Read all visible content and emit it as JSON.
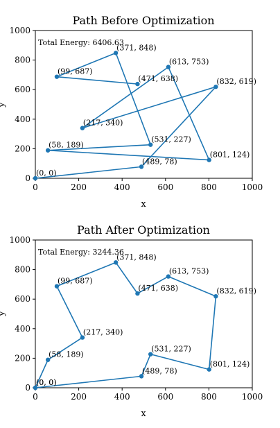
{
  "colors": {
    "line": "#1f77b4",
    "marker": "#1f77b4"
  },
  "chart_data": [
    {
      "type": "line",
      "title": "Path Before Optimization",
      "xlabel": "x",
      "ylabel": "y",
      "xlim": [
        0,
        1000
      ],
      "ylim": [
        0,
        1000
      ],
      "xticks": [
        "0",
        "200",
        "400",
        "600",
        "800",
        "1000"
      ],
      "yticks": [
        "0",
        "200",
        "400",
        "600",
        "800",
        "1000"
      ],
      "energy_label": "Total Energy: 6406.63",
      "path": [
        {
          "x": 0,
          "y": 0,
          "label": "(0, 0)"
        },
        {
          "x": 489,
          "y": 78,
          "label": "(489, 78)"
        },
        {
          "x": 832,
          "y": 619,
          "label": "(832, 619)"
        },
        {
          "x": 217,
          "y": 340,
          "label": "(217, 340)"
        },
        {
          "x": 613,
          "y": 753,
          "label": "(613, 753)"
        },
        {
          "x": 801,
          "y": 124,
          "label": "(801, 124)"
        },
        {
          "x": 58,
          "y": 189,
          "label": "(58, 189)"
        },
        {
          "x": 531,
          "y": 227,
          "label": "(531, 227)"
        },
        {
          "x": 371,
          "y": 848,
          "label": "(371, 848)"
        },
        {
          "x": 99,
          "y": 687,
          "label": "(99, 687)"
        },
        {
          "x": 471,
          "y": 638,
          "label": "(471, 638)"
        }
      ]
    },
    {
      "type": "line",
      "title": "Path After Optimization",
      "xlabel": "x",
      "ylabel": "y",
      "xlim": [
        0,
        1000
      ],
      "ylim": [
        0,
        1000
      ],
      "xticks": [
        "0",
        "200",
        "400",
        "600",
        "800",
        "1000"
      ],
      "yticks": [
        "0",
        "200",
        "400",
        "600",
        "800",
        "1000"
      ],
      "energy_label": "Total Energy: 3244.36",
      "path": [
        {
          "x": 0,
          "y": 0,
          "label": "(0, 0)"
        },
        {
          "x": 58,
          "y": 189,
          "label": "(58, 189)"
        },
        {
          "x": 217,
          "y": 340,
          "label": "(217, 340)"
        },
        {
          "x": 99,
          "y": 687,
          "label": "(99, 687)"
        },
        {
          "x": 371,
          "y": 848,
          "label": "(371, 848)"
        },
        {
          "x": 471,
          "y": 638,
          "label": "(471, 638)"
        },
        {
          "x": 613,
          "y": 753,
          "label": "(613, 753)"
        },
        {
          "x": 832,
          "y": 619,
          "label": "(832, 619)"
        },
        {
          "x": 801,
          "y": 124,
          "label": "(801, 124)"
        },
        {
          "x": 531,
          "y": 227,
          "label": "(531, 227)"
        },
        {
          "x": 489,
          "y": 78,
          "label": "(489, 78)"
        },
        {
          "x": 0,
          "y": 0,
          "label": "(0, 0)"
        }
      ]
    }
  ]
}
